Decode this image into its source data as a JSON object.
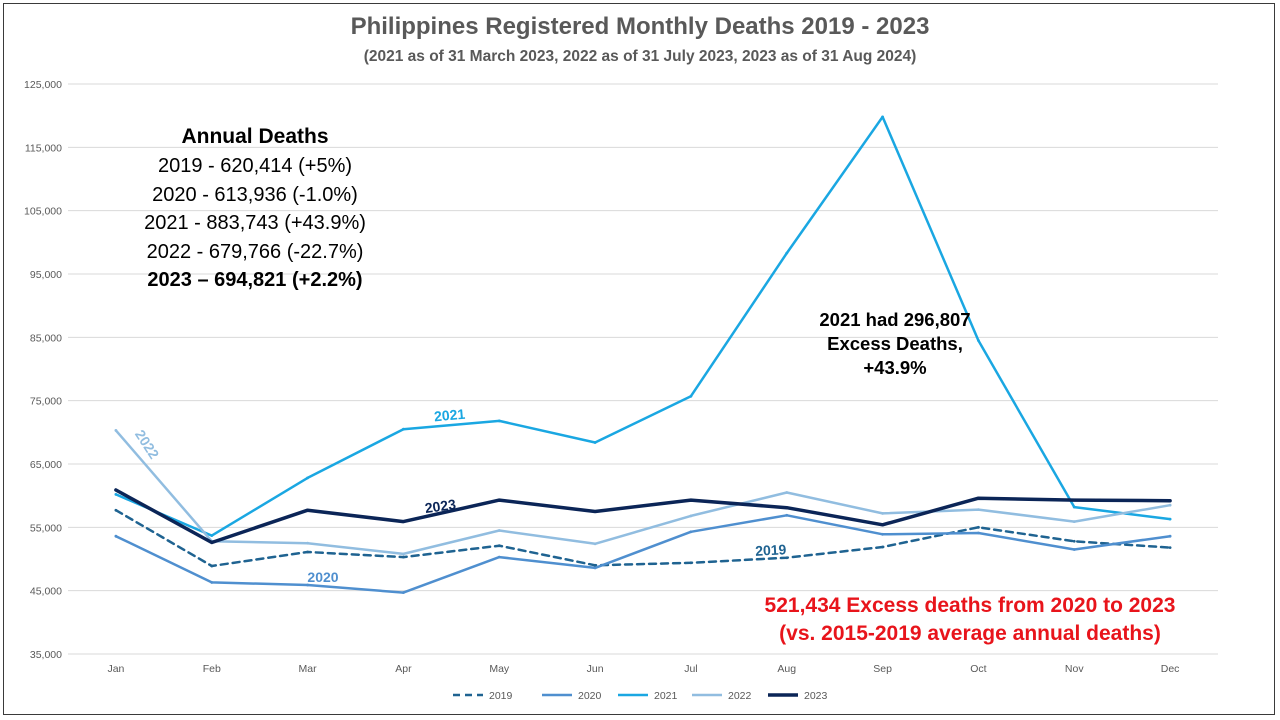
{
  "chart_data": {
    "type": "line",
    "title": "Philippines Registered Monthly Deaths 2019 - 2023",
    "subtitle": "(2021 as of 31 March 2023, 2022 as of 31 July 2023, 2023 as of 31 Aug 2024)",
    "categories": [
      "Jan",
      "Feb",
      "Mar",
      "Apr",
      "May",
      "Jun",
      "Jul",
      "Aug",
      "Sep",
      "Oct",
      "Nov",
      "Dec"
    ],
    "ylim": [
      35000,
      125000
    ],
    "yticks": [
      35000,
      45000,
      55000,
      65000,
      75000,
      85000,
      95000,
      105000,
      115000,
      125000
    ],
    "ytick_labels": [
      "35,000",
      "45,000",
      "55,000",
      "65,000",
      "75,000",
      "85,000",
      "95,000",
      "105,000",
      "115,000",
      "125,000"
    ],
    "grid": true,
    "legend_position": "bottom",
    "series": [
      {
        "name": "2019",
        "color": "#1f6391",
        "dashed": true,
        "width": 2.5,
        "values": [
          57700,
          48900,
          51100,
          50300,
          52100,
          49000,
          49400,
          50200,
          51900,
          55000,
          52800,
          51800
        ]
      },
      {
        "name": "2020",
        "color": "#4f8fcf",
        "dashed": false,
        "width": 2.5,
        "values": [
          53600,
          46300,
          45900,
          44700,
          50300,
          48600,
          54300,
          56900,
          53900,
          54100,
          51500,
          53600
        ]
      },
      {
        "name": "2021",
        "color": "#1aa7e2",
        "dashed": false,
        "width": 2.5,
        "values": [
          60200,
          53700,
          62800,
          70500,
          71800,
          68400,
          75700,
          98300,
          119800,
          84500,
          58200,
          56300
        ]
      },
      {
        "name": "2022",
        "color": "#91bde0",
        "dashed": false,
        "width": 2.5,
        "values": [
          70300,
          52800,
          52500,
          50800,
          54500,
          52400,
          56800,
          60500,
          57200,
          57800,
          55900,
          58500
        ]
      },
      {
        "name": "2023",
        "color": "#0b2557",
        "dashed": false,
        "width": 3.5,
        "values": [
          60900,
          52600,
          57700,
          55900,
          59300,
          57500,
          59300,
          58100,
          55400,
          59600,
          59300,
          59200
        ]
      }
    ],
    "inline_labels": [
      {
        "text": "2022",
        "series": "2022",
        "color": "#91bde0"
      },
      {
        "text": "2021",
        "series": "2021",
        "color": "#1aa7e2"
      },
      {
        "text": "2023",
        "series": "2023",
        "color": "#0b2557"
      },
      {
        "text": "2020",
        "series": "2020",
        "color": "#4f8fcf"
      },
      {
        "text": "2019",
        "series": "2019",
        "color": "#1f6391"
      }
    ]
  },
  "annotations": {
    "annual_heading": "Annual Deaths",
    "annual_lines": [
      "2019 - 620,414 (+5%)",
      "2020 - 613,936 (-1.0%)",
      "2021 - 883,743 (+43.9%)",
      "2022 - 679,766 (-22.7%)",
      "2023 – 694,821 (+2.2%)"
    ],
    "excess_2021": [
      "2021 had 296,807",
      "Excess Deaths,",
      "+43.9%"
    ],
    "excess_total": [
      "521,434 Excess deaths from 2020 to 2023",
      "(vs. 2015-2019 average annual deaths)"
    ]
  }
}
